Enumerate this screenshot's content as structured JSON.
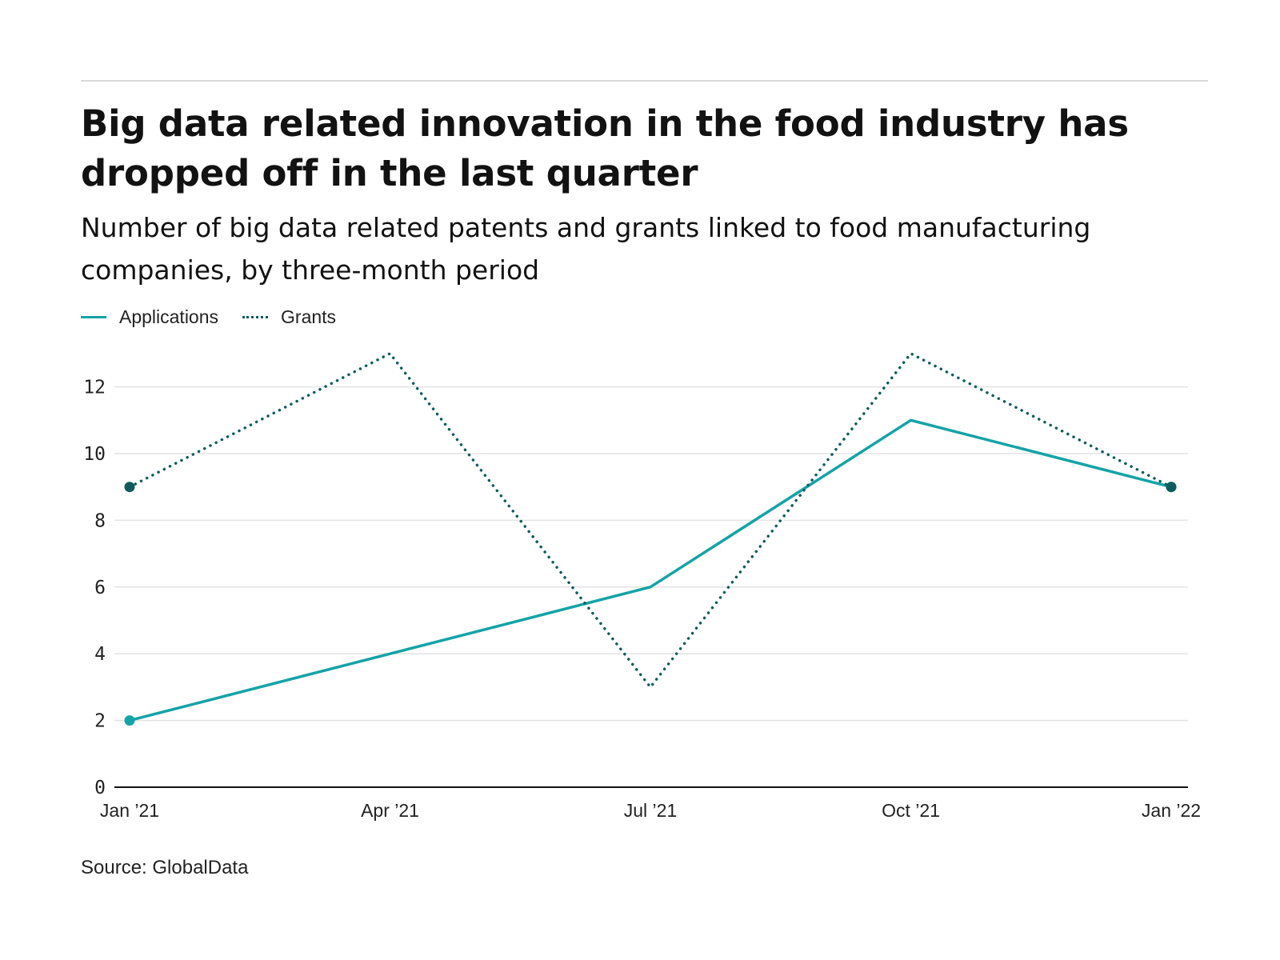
{
  "title": "Big data related innovation in the food industry has dropped off in the last quarter",
  "subtitle": "Number of big data related patents and grants linked to food manufacturing companies, by three-month period",
  "source": "Source: GlobalData",
  "chart_data": {
    "type": "line",
    "title": "Big data related innovation in the food industry has dropped off in the last quarter",
    "subtitle": "Number of big data related patents and grants linked to food manufacturing companies, by three-month period",
    "xlabel": "",
    "ylabel": "",
    "x": [
      "Jan ’21",
      "Apr ’21",
      "Jul ’21",
      "Oct ’21",
      "Jan ’22"
    ],
    "ylim": [
      0,
      13
    ],
    "yticks": [
      0,
      2,
      4,
      6,
      8,
      10,
      12
    ],
    "grid": true,
    "legend_position": "top-left",
    "series": [
      {
        "name": "Applications",
        "values": [
          2,
          4,
          6,
          11,
          9
        ],
        "color": "#14a3a6",
        "style": "solid"
      },
      {
        "name": "Grants",
        "values": [
          9,
          13,
          3,
          13,
          9
        ],
        "color": "#0e5c5d",
        "style": "dotted"
      }
    ]
  }
}
